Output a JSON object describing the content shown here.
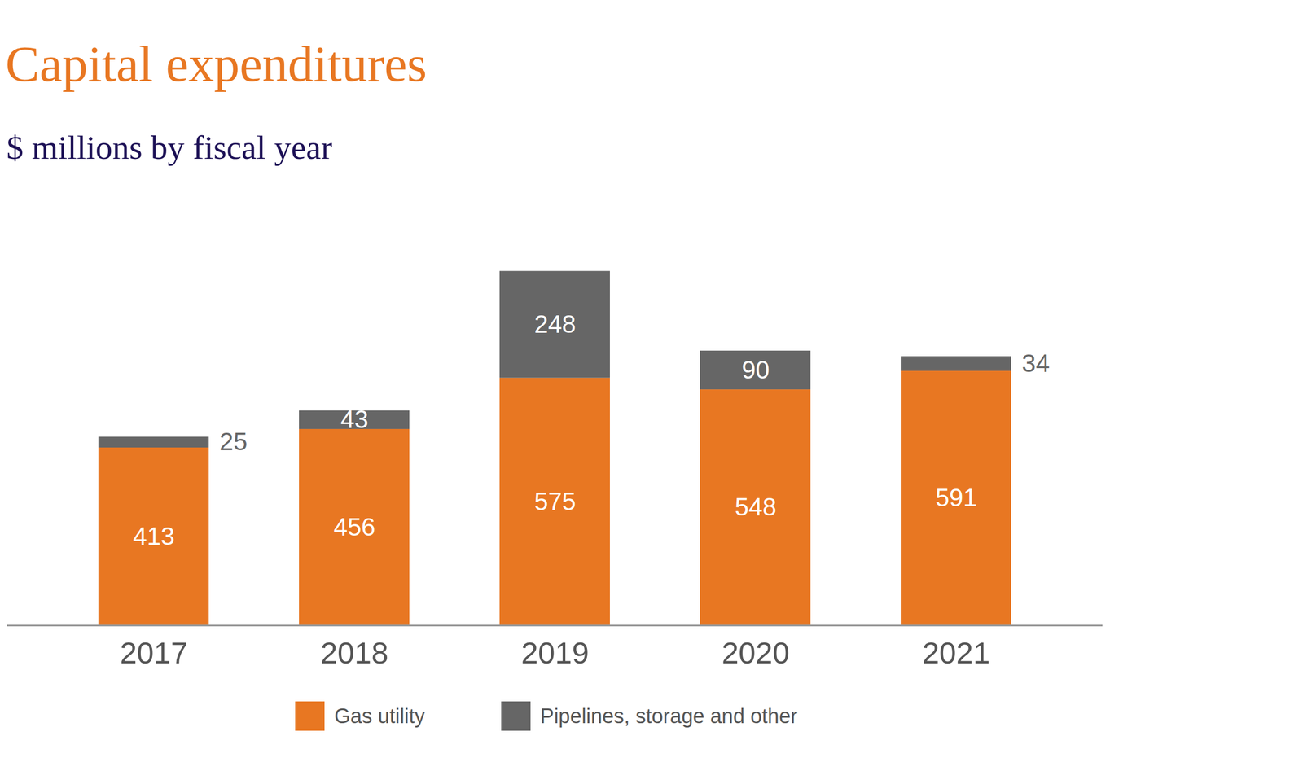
{
  "chart_data": {
    "type": "bar",
    "title": "Capital expenditures",
    "subtitle": "$ millions by fiscal year",
    "categories": [
      "2017",
      "2018",
      "2019",
      "2020",
      "2021"
    ],
    "series": [
      {
        "name": "Gas utility",
        "color": "#e87722",
        "values": [
          413,
          456,
          575,
          548,
          591
        ]
      },
      {
        "name": "Pipelines, storage and other",
        "color": "#666666",
        "values": [
          25,
          43,
          248,
          90,
          34
        ]
      }
    ],
    "stacked": true,
    "data_labels": true,
    "tick_labels": "x",
    "legend": "bottom",
    "ylim": [
      0,
      850
    ]
  }
}
